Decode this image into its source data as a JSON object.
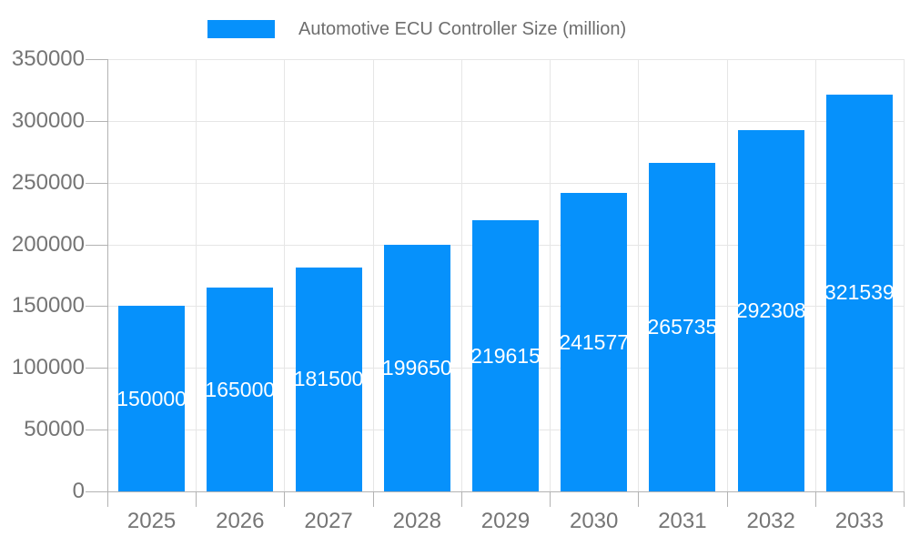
{
  "legend": {
    "label": "Automotive ECU Controller Size (million)"
  },
  "chart_data": {
    "type": "bar",
    "title": "Automotive ECU Controller Size (million)",
    "categories": [
      "2025",
      "2026",
      "2027",
      "2028",
      "2029",
      "2030",
      "2031",
      "2032",
      "2033"
    ],
    "series": [
      {
        "name": "Automotive ECU Controller Size (million)",
        "values": [
          150000,
          165000,
          181500,
          199650,
          219615,
          241577,
          265735,
          292308,
          321539
        ],
        "bar_labels": [
          "150000",
          "165000",
          "181500",
          "199650",
          "219615",
          "241577",
          "265735",
          "292308",
          "321539"
        ]
      }
    ],
    "xlabel": "",
    "ylabel": "",
    "ylim": [
      0,
      350000
    ],
    "y_tick_step": 50000,
    "y_tick_labels": [
      "0",
      "50000",
      "100000",
      "150000",
      "200000",
      "250000",
      "300000",
      "350000"
    ],
    "grid": "both",
    "legend_position": "top",
    "bar_label_position": "inside-center",
    "colors": {
      "bar": "#0691fb",
      "grid": "#e6e6e6",
      "axis": "#b3b3b3",
      "axis_text": "#757575",
      "legend_text": "#6e6e6e",
      "bar_label_text": "#ffffff",
      "background": "#ffffff"
    }
  }
}
